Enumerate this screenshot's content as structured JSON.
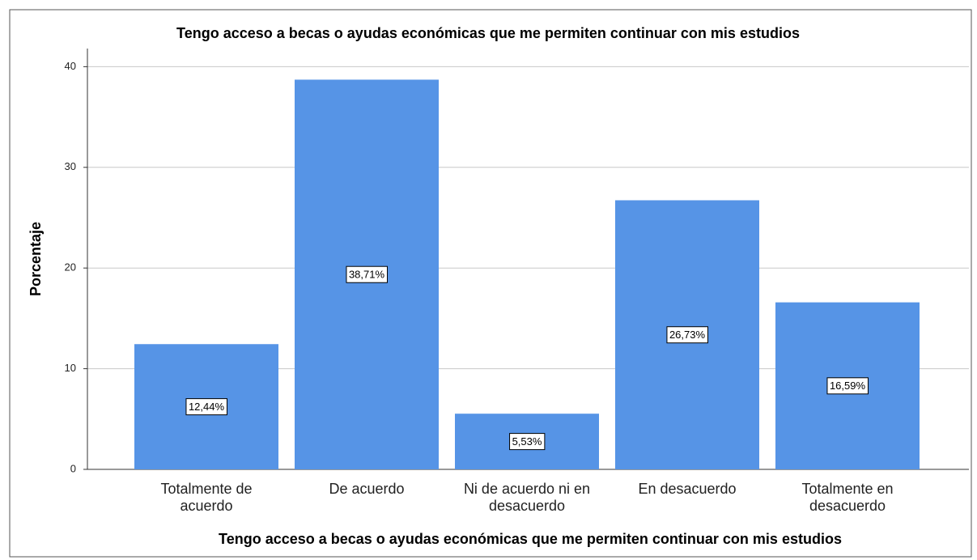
{
  "chart_data": {
    "type": "bar",
    "title": "Tengo acceso a becas o ayudas económicas que me permiten continuar con mis estudios",
    "x_label": "Tengo acceso a becas o ayudas económicas que me permiten continuar con mis estudios",
    "y_label": "Porcentaje",
    "categories": [
      "Totalmente de acuerdo",
      "De acuerdo",
      "Ni de acuerdo ni en desacuerdo",
      "En desacuerdo",
      "Totalmente en desacuerdo"
    ],
    "values": [
      12.44,
      38.71,
      5.53,
      26.73,
      16.59
    ],
    "value_labels": [
      "12,44%",
      "38,71%",
      "5,53%",
      "26,73%",
      "16,59%"
    ],
    "color": "#5694e6",
    "ylim": [
      0,
      41.8
    ],
    "yticks": [
      0,
      10,
      20,
      30,
      40
    ],
    "grid": true
  }
}
